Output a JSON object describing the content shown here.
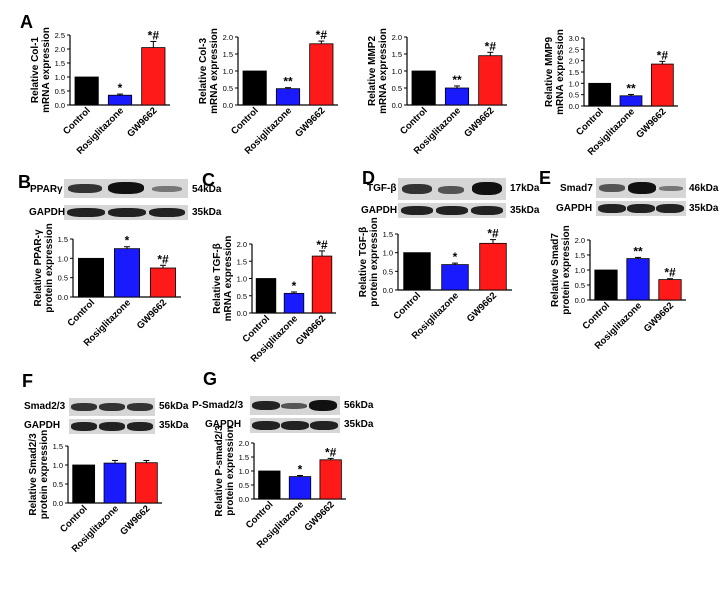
{
  "colors": {
    "Control": "#000000",
    "Rosiglitazone": "#1a1aff",
    "GW9662": "#ff1a1a",
    "axis": "#000000"
  },
  "panel_letters": [
    "A",
    "B",
    "C",
    "D",
    "E",
    "F",
    "G"
  ],
  "blots": {
    "B": {
      "target": "PPARγ",
      "target_kda": "54kDa",
      "loading": "GAPDH",
      "loading_kda": "35kDa"
    },
    "D": {
      "target": "TGF-β",
      "target_kda": "17kDa",
      "loading": "GAPDH",
      "loading_kda": "35kDa"
    },
    "E": {
      "target": "Smad7",
      "target_kda": "46kDa",
      "loading": "GAPDH",
      "loading_kda": "35kDa"
    },
    "F": {
      "target": "Smad2/3",
      "target_kda": "56kDa",
      "loading": "GAPDH",
      "loading_kda": "35kDa"
    },
    "G": {
      "target": "P-Smad2/3",
      "target_kda": "56kDa",
      "loading": "GAPDH",
      "loading_kda": "35kDa"
    }
  },
  "chart_data": [
    {
      "id": "A1",
      "type": "bar",
      "ylabel": [
        "Relative Col-1",
        "mRNA expression"
      ],
      "categories": [
        "Control",
        "Rosiglitazone",
        "GW9662"
      ],
      "values": [
        1.0,
        0.35,
        2.05
      ],
      "errors": [
        0,
        0.04,
        0.22
      ],
      "ylim": [
        0,
        2.5
      ],
      "yticks": [
        "0.0",
        "0.5",
        "1.0",
        "1.5",
        "2.0",
        "2.5"
      ],
      "marks": [
        "",
        "*",
        "*#"
      ]
    },
    {
      "id": "A2",
      "type": "bar",
      "ylabel": [
        "Relative Col-3",
        "mRNA expression"
      ],
      "categories": [
        "Control",
        "Rosiglitazone",
        "GW9662"
      ],
      "values": [
        1.0,
        0.48,
        1.8
      ],
      "errors": [
        0,
        0.03,
        0.08
      ],
      "ylim": [
        0,
        2.0
      ],
      "yticks": [
        "0.0",
        "0.5",
        "1.0",
        "1.5",
        "2.0"
      ],
      "marks": [
        "",
        "**",
        "*#"
      ]
    },
    {
      "id": "A3",
      "type": "bar",
      "ylabel": [
        "Relative MMP2",
        "mRNA expression"
      ],
      "categories": [
        "Control",
        "Rosiglitazone",
        "GW9662"
      ],
      "values": [
        1.0,
        0.5,
        1.45
      ],
      "errors": [
        0,
        0.06,
        0.1
      ],
      "ylim": [
        0,
        2.0
      ],
      "yticks": [
        "0.0",
        "0.5",
        "1.0",
        "1.5",
        "2.0"
      ],
      "marks": [
        "",
        "**",
        "*#"
      ]
    },
    {
      "id": "A4",
      "type": "bar",
      "ylabel": [
        "Relative MMP9",
        "mRNA expression"
      ],
      "categories": [
        "Control",
        "Rosiglitazone",
        "GW9662"
      ],
      "values": [
        1.0,
        0.45,
        1.85
      ],
      "errors": [
        0,
        0.06,
        0.12
      ],
      "ylim": [
        0,
        3.0
      ],
      "yticks": [
        "0.0",
        "0.5",
        "1.0",
        "1.5",
        "2.0",
        "2.5",
        "3.0"
      ],
      "marks": [
        "",
        "**",
        "*#"
      ]
    },
    {
      "id": "B",
      "type": "bar",
      "ylabel": [
        "Relative PPAR-γ",
        "protein expression"
      ],
      "categories": [
        "Control",
        "Rosiglitazone",
        "GW9662"
      ],
      "values": [
        1.0,
        1.25,
        0.75
      ],
      "errors": [
        0,
        0.05,
        0.07
      ],
      "ylim": [
        0,
        1.5
      ],
      "yticks": [
        "0.0",
        "0.5",
        "1.0",
        "1.5"
      ],
      "marks": [
        "",
        "*",
        "*#"
      ]
    },
    {
      "id": "C",
      "type": "bar",
      "ylabel": [
        "Relative TGF-β",
        "mRNA expression"
      ],
      "categories": [
        "Control",
        "Rosiglitazone",
        "GW9662"
      ],
      "values": [
        1.0,
        0.57,
        1.65
      ],
      "errors": [
        0,
        0.04,
        0.15
      ],
      "ylim": [
        0,
        2.0
      ],
      "yticks": [
        "0.0",
        "0.5",
        "1.0",
        "1.5",
        "2.0"
      ],
      "marks": [
        "",
        "*",
        "*#"
      ]
    },
    {
      "id": "D",
      "type": "bar",
      "ylabel": [
        "Relative TGF-β",
        "protein expression"
      ],
      "categories": [
        "Control",
        "Rosiglitazone",
        "GW9662"
      ],
      "values": [
        1.0,
        0.68,
        1.25
      ],
      "errors": [
        0,
        0.04,
        0.1
      ],
      "ylim": [
        0,
        1.5
      ],
      "yticks": [
        "0.0",
        "0.5",
        "1.0",
        "1.5"
      ],
      "marks": [
        "",
        "*",
        "*#"
      ]
    },
    {
      "id": "E",
      "type": "bar",
      "ylabel": [
        "Relative Smad7",
        "protein expression"
      ],
      "categories": [
        "Control",
        "Rosiglitazone",
        "GW9662"
      ],
      "values": [
        1.0,
        1.38,
        0.68
      ],
      "errors": [
        0,
        0.04,
        0.03
      ],
      "ylim": [
        0,
        2.0
      ],
      "yticks": [
        "0.0",
        "0.5",
        "1.0",
        "1.5",
        "2.0"
      ],
      "marks": [
        "",
        "**",
        "*#"
      ]
    },
    {
      "id": "F",
      "type": "bar",
      "ylabel": [
        "Relative Smad2/3",
        "protein expression"
      ],
      "categories": [
        "Control",
        "Rosiglitazone",
        "GW9662"
      ],
      "values": [
        1.0,
        1.05,
        1.06
      ],
      "errors": [
        0,
        0.07,
        0.06
      ],
      "ylim": [
        0,
        1.5
      ],
      "yticks": [
        "0.0",
        "0.5",
        "1.0",
        "1.5"
      ],
      "marks": [
        "",
        "",
        ""
      ]
    },
    {
      "id": "G",
      "type": "bar",
      "ylabel": [
        "Relative P-smad2/3",
        "protein expression"
      ],
      "categories": [
        "Control",
        "Rosiglitazone",
        "GW9662"
      ],
      "values": [
        1.0,
        0.8,
        1.4
      ],
      "errors": [
        0,
        0.04,
        0.05
      ],
      "ylim": [
        0,
        2.0
      ],
      "yticks": [
        "0.0",
        "0.5",
        "1.0",
        "1.5",
        "2.0"
      ],
      "marks": [
        "",
        "*",
        "*#"
      ]
    }
  ]
}
